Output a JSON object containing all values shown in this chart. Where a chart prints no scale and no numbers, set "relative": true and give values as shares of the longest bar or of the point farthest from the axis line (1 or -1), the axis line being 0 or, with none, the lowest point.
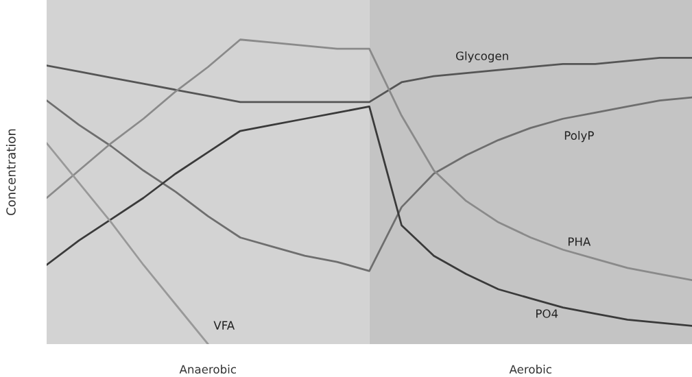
{
  "chart_data": {
    "type": "line",
    "relative": true,
    "ylabel": "Concentration",
    "categories": [
      null,
      null,
      null,
      null,
      null,
      null,
      null,
      null,
      null,
      null,
      null,
      null,
      null,
      null,
      null,
      null,
      null,
      null,
      null,
      null,
      null
    ],
    "series": [
      {
        "name": "Glycogen",
        "color": "#555555",
        "values": [
          0.915,
          0.895,
          0.875,
          0.855,
          0.835,
          0.815,
          0.795,
          0.795,
          0.795,
          0.795,
          0.795,
          0.86,
          0.88,
          0.89,
          0.9,
          0.91,
          0.92,
          0.92,
          0.93,
          0.94,
          0.94
        ]
      },
      {
        "name": "PolyP",
        "color": "#6e6e6e",
        "values": [
          0.8,
          0.72,
          0.65,
          0.57,
          0.5,
          0.42,
          0.35,
          0.32,
          0.29,
          0.27,
          0.24,
          0.45,
          0.56,
          0.62,
          0.67,
          0.71,
          0.74,
          0.76,
          0.78,
          0.8,
          0.81
        ]
      },
      {
        "name": "PHA",
        "color": "#8a8a8a",
        "values": [
          0.48,
          0.57,
          0.66,
          0.74,
          0.83,
          0.91,
          1.0,
          0.99,
          0.98,
          0.97,
          0.97,
          0.75,
          0.57,
          0.47,
          0.4,
          0.35,
          0.31,
          0.28,
          0.25,
          0.23,
          0.21
        ]
      },
      {
        "name": "PO4",
        "color": "#3a3a3a",
        "values": [
          0.26,
          0.34,
          0.41,
          0.48,
          0.56,
          0.63,
          0.7,
          0.72,
          0.74,
          0.76,
          0.78,
          0.39,
          0.29,
          0.23,
          0.18,
          0.15,
          0.12,
          0.1,
          0.08,
          0.07,
          0.06
        ]
      },
      {
        "name": "VFA",
        "color": "#999999",
        "values": [
          0.66,
          0.53,
          0.4,
          0.26,
          0.13,
          0.0,
          null,
          null,
          null,
          null,
          null,
          null,
          null,
          null,
          null,
          null,
          null,
          null,
          null,
          null,
          null
        ]
      }
    ],
    "annotations": [
      "Anaerobic",
      "Aerobic"
    ],
    "legend": false
  }
}
